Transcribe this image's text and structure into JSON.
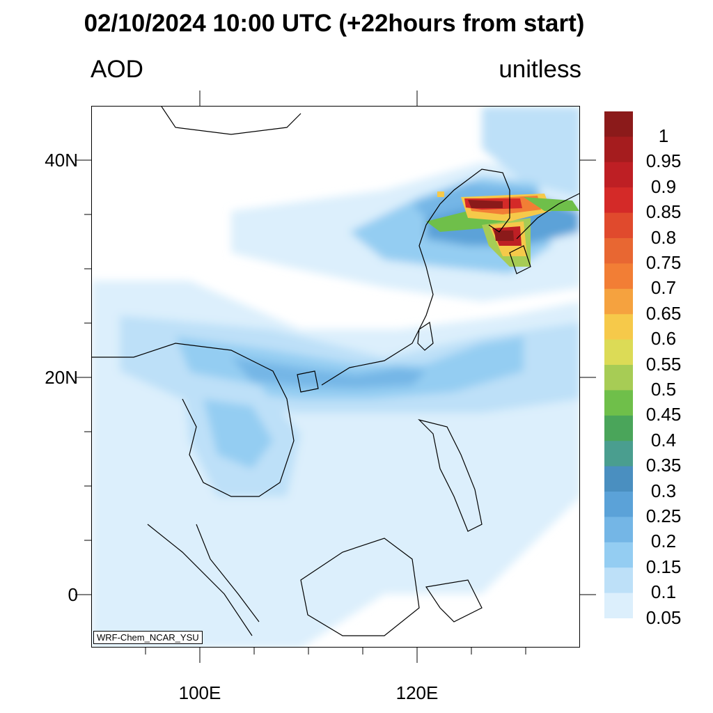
{
  "title": "02/10/2024 10:00 UTC (+22hours from start)",
  "variable_label": "AOD",
  "units_label": "unitless",
  "credit": "WRF-Chem_NCAR_YSU",
  "axes": {
    "y_ticks": [
      "40N",
      "20N",
      "0"
    ],
    "x_ticks": [
      "100E",
      "120E"
    ]
  },
  "colorbar": {
    "labels": [
      "1",
      "0.95",
      "0.9",
      "0.85",
      "0.8",
      "0.75",
      "0.7",
      "0.65",
      "0.6",
      "0.55",
      "0.5",
      "0.45",
      "0.4",
      "0.35",
      "0.3",
      "0.25",
      "0.2",
      "0.15",
      "0.1",
      "0.05"
    ],
    "colors": [
      "#8b1a1a",
      "#a51c1e",
      "#be1f24",
      "#d42a28",
      "#e04a2d",
      "#e86732",
      "#f27e35",
      "#f5a23f",
      "#f6c94a",
      "#dcdb56",
      "#a7cc55",
      "#6fbf4a",
      "#4aa55a",
      "#4a9e8f",
      "#4a8fc0",
      "#5ba2d8",
      "#74b6e6",
      "#94cdf2",
      "#bde0f8",
      "#dceffc"
    ]
  }
}
